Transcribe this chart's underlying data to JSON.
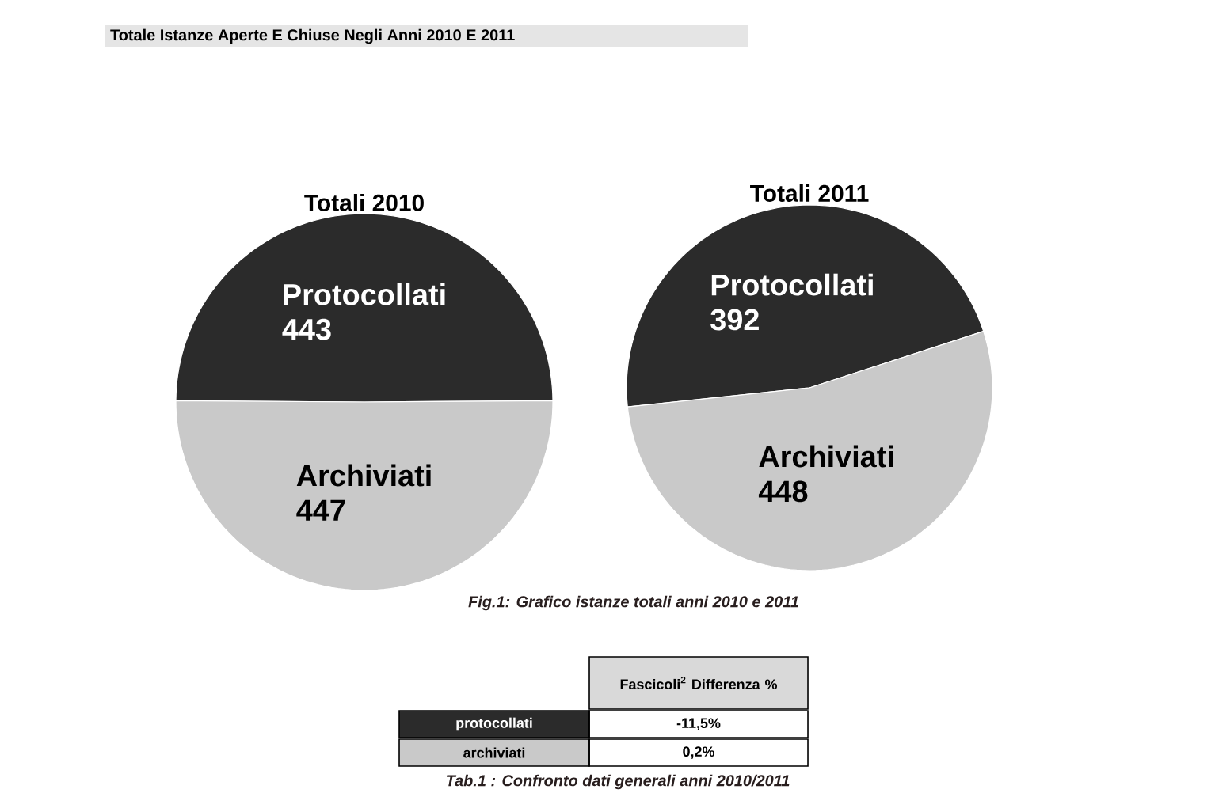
{
  "chart_data": [
    {
      "type": "pie",
      "title": "Totali 2010",
      "categories": [
        "Protocollati",
        "Archiviati"
      ],
      "values": [
        443,
        447
      ],
      "colors": [
        "#2b2b2b",
        "#c9c9c9"
      ],
      "data_labels": true
    },
    {
      "type": "pie",
      "title": "Totali 2011",
      "categories": [
        "Protocollati",
        "Archiviati"
      ],
      "values": [
        392,
        448
      ],
      "colors": [
        "#2b2b2b",
        "#c9c9c9"
      ],
      "data_labels": true
    },
    {
      "type": "other",
      "title": "Totale Istanze Aperte E Chiuse Negli Anni 2010 E 2011",
      "annotations": [
        "Fig.1: Grafico istanze totali anni 2010 e 2011",
        "Fascicoli$^{2}$ Differenza %",
        "protocollati",
        "-11,5%",
        "archiviati",
        "0,2%",
        "Tab.1 : Confronto dati generali anni 2010/2011"
      ]
    }
  ]
}
